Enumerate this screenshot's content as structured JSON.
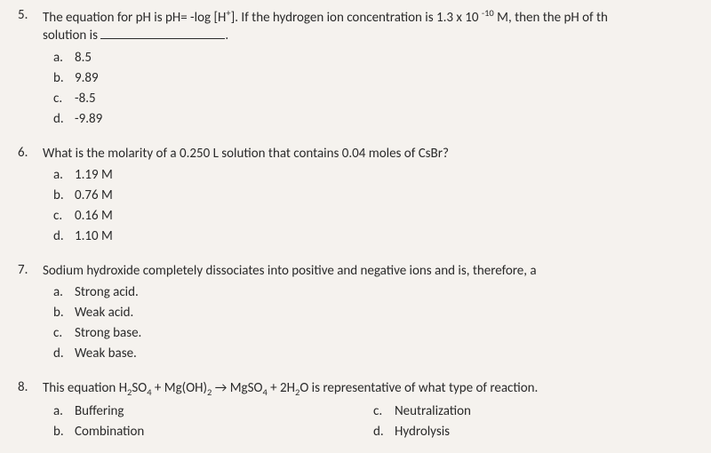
{
  "q5": {
    "number": "5.",
    "stem_part1": "The equation for pH is pH= -log [H",
    "stem_sup1": "+",
    "stem_part2": "].  If the hydrogen ion concentration is 1.3 x 10 ",
    "stem_sup2": "-10",
    "stem_part3": " M, then the pH of th",
    "stem_line2": "solution is ",
    "stem_end": ".",
    "options": [
      {
        "letter": "a.",
        "text": "8.5"
      },
      {
        "letter": "b.",
        "text": "9.89"
      },
      {
        "letter": "c.",
        "text": "-8.5"
      },
      {
        "letter": "d.",
        "text": "-9.89"
      }
    ]
  },
  "q6": {
    "number": "6.",
    "stem": "What is the molarity of a 0.250 L solution that contains 0.04 moles of CsBr?",
    "options": [
      {
        "letter": "a.",
        "text": "1.19 M"
      },
      {
        "letter": "b.",
        "text": "0.76 M"
      },
      {
        "letter": "c.",
        "text": "0.16 M"
      },
      {
        "letter": "d.",
        "text": "1.10 M"
      }
    ]
  },
  "q7": {
    "number": "7.",
    "stem": "Sodium hydroxide completely dissociates into positive and negative ions and is, therefore, a",
    "options": [
      {
        "letter": "a.",
        "text": "Strong acid."
      },
      {
        "letter": "b.",
        "text": "Weak acid."
      },
      {
        "letter": "c.",
        "text": "Strong base."
      },
      {
        "letter": "d.",
        "text": "Weak base."
      }
    ]
  },
  "q8": {
    "number": "8.",
    "stem_p1": "This equation H",
    "stem_s1": "2",
    "stem_p2": "SO",
    "stem_s2": "4",
    "stem_p3": " + Mg(OH)",
    "stem_s3": "2",
    "stem_p4": " → MgSO",
    "stem_s4": "4",
    "stem_p5": " + 2H",
    "stem_s5": "2",
    "stem_p6": "O is representative of what type of reaction.",
    "options_left": [
      {
        "letter": "a.",
        "text": "Buffering"
      },
      {
        "letter": "b.",
        "text": "Combination"
      }
    ],
    "options_right": [
      {
        "letter": "c.",
        "text": "Neutralization"
      },
      {
        "letter": "d.",
        "text": "Hydrolysis"
      }
    ]
  }
}
